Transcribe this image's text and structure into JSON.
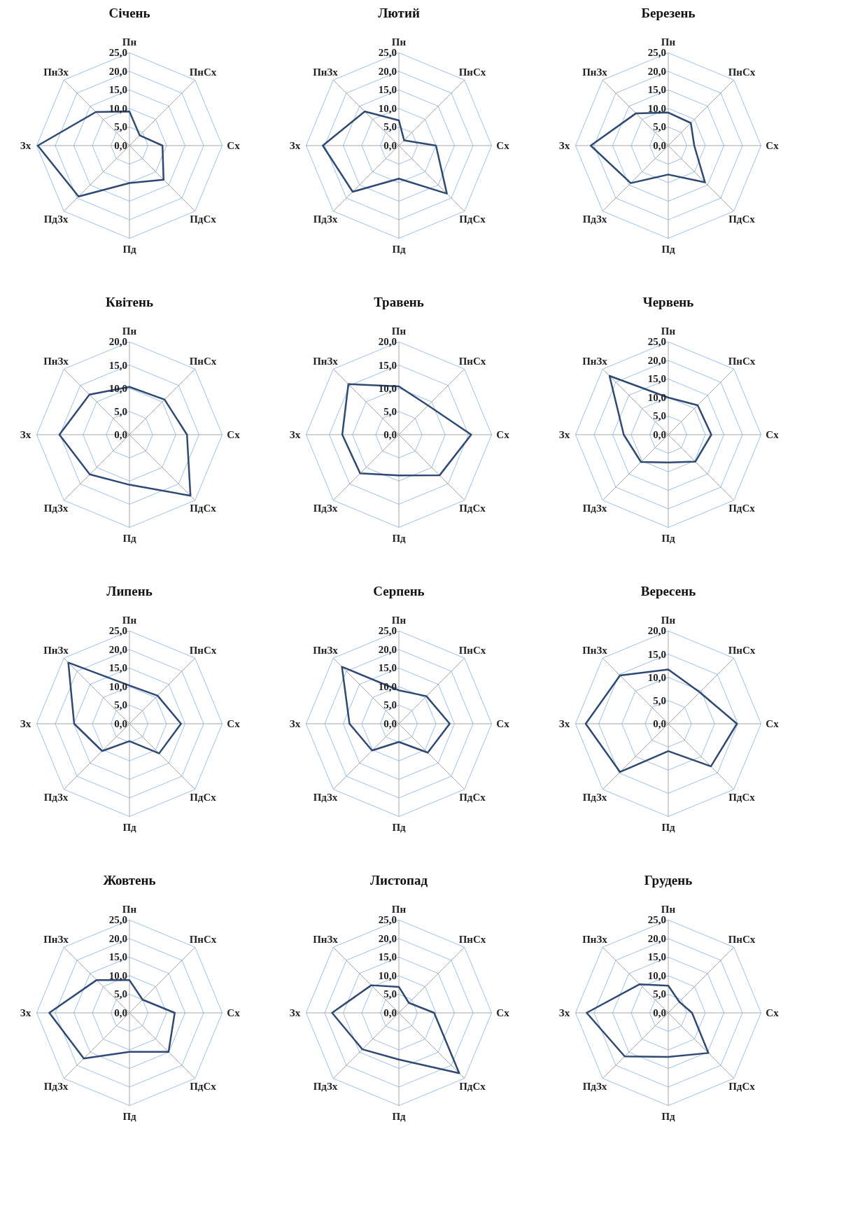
{
  "chart_data": [
    {
      "type": "radar",
      "title": "Січень",
      "categories": [
        "Пн",
        "ПнСх",
        "Сх",
        "ПдСх",
        "Пд",
        "ПдЗх",
        "Зх",
        "ПнЗх"
      ],
      "series": [
        {
          "color": "#2e4a74",
          "values": [
            9.2,
            3.9,
            8.9,
            13.0,
            10.1,
            19.4,
            24.7,
            12.8
          ]
        }
      ],
      "ylim": [
        0,
        25
      ],
      "yticks": [
        {
          "value": 0,
          "label": "0,0"
        },
        {
          "value": 5,
          "label": "5,0"
        },
        {
          "value": 10,
          "label": "10,0"
        },
        {
          "value": 15,
          "label": "15,0"
        },
        {
          "value": 20,
          "label": "20,0"
        },
        {
          "value": 25,
          "label": "25,0"
        }
      ],
      "grid": true
    },
    {
      "type": "radar",
      "title": "Лютий",
      "categories": [
        "Пн",
        "ПнСх",
        "Сх",
        "ПдСх",
        "Пд",
        "ПдЗх",
        "Зх",
        "ПнЗх"
      ],
      "series": [
        {
          "color": "#2e4a74",
          "values": [
            6.8,
            2.0,
            10.0,
            18.3,
            8.9,
            17.6,
            20.5,
            13.0
          ]
        }
      ],
      "ylim": [
        0,
        25
      ],
      "yticks": [
        {
          "value": 0,
          "label": "0,0"
        },
        {
          "value": 5,
          "label": "5,0"
        },
        {
          "value": 10,
          "label": "10,0"
        },
        {
          "value": 15,
          "label": "15,0"
        },
        {
          "value": 20,
          "label": "20,0"
        },
        {
          "value": 25,
          "label": "25,0"
        }
      ],
      "grid": true
    },
    {
      "type": "radar",
      "title": "Березень",
      "categories": [
        "Пн",
        "ПнСх",
        "Сх",
        "ПдСх",
        "Пд",
        "ПдЗх",
        "Зх",
        "ПнЗх"
      ],
      "series": [
        {
          "color": "#2e4a74",
          "values": [
            8.9,
            8.6,
            7.0,
            14.0,
            7.8,
            14.3,
            20.9,
            12.3
          ]
        }
      ],
      "ylim": [
        0,
        25
      ],
      "yticks": [
        {
          "value": 0,
          "label": "0,0"
        },
        {
          "value": 5,
          "label": "5,0"
        },
        {
          "value": 10,
          "label": "10,0"
        },
        {
          "value": 15,
          "label": "15,0"
        },
        {
          "value": 20,
          "label": "20,0"
        },
        {
          "value": 25,
          "label": "25,0"
        }
      ],
      "grid": true
    },
    {
      "type": "radar",
      "title": "Квітень",
      "categories": [
        "Пн",
        "ПнСх",
        "Сх",
        "ПдСх",
        "Пд",
        "ПдЗх",
        "Зх",
        "ПнЗх"
      ],
      "series": [
        {
          "color": "#2e4a74",
          "values": [
            10.3,
            10.7,
            12.4,
            18.6,
            10.8,
            12.1,
            15.1,
            12.2
          ]
        }
      ],
      "ylim": [
        0,
        20
      ],
      "yticks": [
        {
          "value": 0,
          "label": "0,0"
        },
        {
          "value": 5,
          "label": "5,0"
        },
        {
          "value": 10,
          "label": "10,0"
        },
        {
          "value": 15,
          "label": "15,0"
        },
        {
          "value": 20,
          "label": "20,0"
        }
      ],
      "grid": true
    },
    {
      "type": "radar",
      "title": "Травень",
      "categories": [
        "Пн",
        "ПнСх",
        "Сх",
        "ПдСх",
        "Пд",
        "ПдЗх",
        "Зх",
        "ПнЗх"
      ],
      "series": [
        {
          "color": "#2e4a74",
          "values": [
            10.4,
            8.9,
            15.6,
            12.4,
            8.8,
            11.8,
            12.2,
            15.4
          ]
        }
      ],
      "ylim": [
        0,
        20
      ],
      "yticks": [
        {
          "value": 0,
          "label": "0,0"
        },
        {
          "value": 5,
          "label": "5,0"
        },
        {
          "value": 10,
          "label": "10,0"
        },
        {
          "value": 15,
          "label": "15,0"
        },
        {
          "value": 20,
          "label": "20,0"
        }
      ],
      "grid": true
    },
    {
      "type": "radar",
      "title": "Червень",
      "categories": [
        "Пн",
        "ПнСх",
        "Сх",
        "ПдСх",
        "Пд",
        "ПдЗх",
        "Зх",
        "ПнЗх"
      ],
      "series": [
        {
          "color": "#2e4a74",
          "values": [
            10.0,
            11.2,
            11.6,
            10.3,
            7.5,
            10.4,
            12.0,
            22.4
          ]
        }
      ],
      "ylim": [
        0,
        25
      ],
      "yticks": [
        {
          "value": 0,
          "label": "0,0"
        },
        {
          "value": 5,
          "label": "5,0"
        },
        {
          "value": 10,
          "label": "10,0"
        },
        {
          "value": 15,
          "label": "15,0"
        },
        {
          "value": 20,
          "label": "20,0"
        },
        {
          "value": 25,
          "label": "25,0"
        }
      ],
      "grid": true
    },
    {
      "type": "radar",
      "title": "Липень",
      "categories": [
        "Пн",
        "ПнСх",
        "Сх",
        "ПдСх",
        "Пд",
        "ПдЗх",
        "Зх",
        "ПнЗх"
      ],
      "series": [
        {
          "color": "#2e4a74",
          "values": [
            10.3,
            10.7,
            13.9,
            11.3,
            4.7,
            10.4,
            14.9,
            23.3
          ]
        }
      ],
      "ylim": [
        0,
        25
      ],
      "yticks": [
        {
          "value": 0,
          "label": "0,0"
        },
        {
          "value": 5,
          "label": "5,0"
        },
        {
          "value": 10,
          "label": "10,0"
        },
        {
          "value": 15,
          "label": "15,0"
        },
        {
          "value": 20,
          "label": "20,0"
        },
        {
          "value": 25,
          "label": "25,0"
        }
      ],
      "grid": true
    },
    {
      "type": "radar",
      "title": "Серпень",
      "categories": [
        "Пн",
        "ПнСх",
        "Сх",
        "ПдСх",
        "Пд",
        "ПдЗх",
        "Зх",
        "ПнЗх"
      ],
      "series": [
        {
          "color": "#2e4a74",
          "values": [
            9.0,
            10.5,
            13.7,
            11.0,
            4.9,
            10.2,
            13.3,
            21.7
          ]
        }
      ],
      "ylim": [
        0,
        25
      ],
      "yticks": [
        {
          "value": 0,
          "label": "0,0"
        },
        {
          "value": 5,
          "label": "5,0"
        },
        {
          "value": 10,
          "label": "10,0"
        },
        {
          "value": 15,
          "label": "15,0"
        },
        {
          "value": 20,
          "label": "20,0"
        },
        {
          "value": 25,
          "label": "25,0"
        }
      ],
      "grid": true
    },
    {
      "type": "radar",
      "title": "Вересень",
      "categories": [
        "Пн",
        "ПнСх",
        "Сх",
        "ПдСх",
        "Пд",
        "ПдЗх",
        "Зх",
        "ПнЗх"
      ],
      "series": [
        {
          "color": "#2e4a74",
          "values": [
            11.7,
            9.6,
            14.8,
            13.0,
            5.9,
            14.7,
            17.8,
            14.7
          ]
        }
      ],
      "ylim": [
        0,
        20
      ],
      "yticks": [
        {
          "value": 0,
          "label": "0,0"
        },
        {
          "value": 5,
          "label": "5,0"
        },
        {
          "value": 10,
          "label": "10,0"
        },
        {
          "value": 15,
          "label": "15,0"
        },
        {
          "value": 20,
          "label": "20,0"
        }
      ],
      "grid": true
    },
    {
      "type": "radar",
      "title": "Жовтень",
      "categories": [
        "Пн",
        "ПнСх",
        "Сх",
        "ПдСх",
        "Пд",
        "ПдЗх",
        "Зх",
        "ПнЗх"
      ],
      "series": [
        {
          "color": "#2e4a74",
          "values": [
            8.8,
            5.0,
            12.2,
            14.9,
            10.5,
            17.4,
            21.6,
            12.5
          ]
        }
      ],
      "ylim": [
        0,
        25
      ],
      "yticks": [
        {
          "value": 0,
          "label": "0,0"
        },
        {
          "value": 5,
          "label": "5,0"
        },
        {
          "value": 10,
          "label": "10,0"
        },
        {
          "value": 15,
          "label": "15,0"
        },
        {
          "value": 20,
          "label": "20,0"
        },
        {
          "value": 25,
          "label": "25,0"
        }
      ],
      "grid": true
    },
    {
      "type": "radar",
      "title": "Листопад",
      "categories": [
        "Пн",
        "ПнСх",
        "Сх",
        "ПдСх",
        "Пд",
        "ПдЗх",
        "Зх",
        "ПнЗх"
      ],
      "series": [
        {
          "color": "#2e4a74",
          "values": [
            7.0,
            3.8,
            9.5,
            23.0,
            12.6,
            13.9,
            18.0,
            10.5
          ]
        }
      ],
      "ylim": [
        0,
        25
      ],
      "yticks": [
        {
          "value": 0,
          "label": "0,0"
        },
        {
          "value": 5,
          "label": "5,0"
        },
        {
          "value": 10,
          "label": "10,0"
        },
        {
          "value": 15,
          "label": "15,0"
        },
        {
          "value": 20,
          "label": "20,0"
        },
        {
          "value": 25,
          "label": "25,0"
        }
      ],
      "grid": true
    },
    {
      "type": "radar",
      "title": "Грудень",
      "categories": [
        "Пн",
        "ПнСх",
        "Сх",
        "ПдСх",
        "Пд",
        "ПдЗх",
        "Зх",
        "ПнЗх"
      ],
      "series": [
        {
          "color": "#2e4a74",
          "values": [
            7.3,
            4.2,
            6.4,
            15.3,
            11.9,
            16.6,
            22.0,
            10.9
          ]
        }
      ],
      "ylim": [
        0,
        25
      ],
      "yticks": [
        {
          "value": 0,
          "label": "0,0"
        },
        {
          "value": 5,
          "label": "5,0"
        },
        {
          "value": 10,
          "label": "10,0"
        },
        {
          "value": 15,
          "label": "15,0"
        },
        {
          "value": 20,
          "label": "20,0"
        },
        {
          "value": 25,
          "label": "25,0"
        }
      ],
      "grid": true
    }
  ]
}
